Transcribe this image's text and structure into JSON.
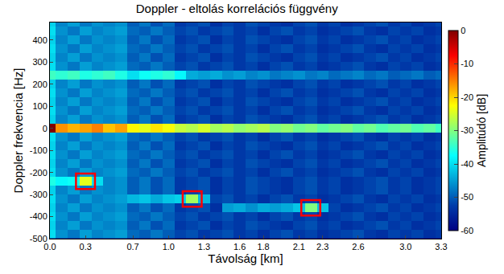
{
  "chart_data": {
    "type": "heatmap",
    "title": "Doppler - eltolás korrelációs függvény",
    "x_label": "Távolság [km]",
    "y_label": "Doppler frekvencia [Hz]",
    "color": "Jet",
    "x": [
      0.0,
      0.1,
      0.2,
      0.3,
      0.4,
      0.5,
      0.6,
      0.7,
      0.8,
      0.9,
      1.0,
      1.1,
      1.2,
      1.3,
      1.4,
      1.5,
      1.6,
      1.7,
      1.8,
      1.9,
      2.0,
      2.1,
      2.2,
      2.3,
      2.4,
      2.5,
      2.6,
      2.7,
      2.8,
      2.9,
      3.0,
      3.1,
      3.2,
      3.3
    ],
    "y": [
      -480,
      -440,
      -400,
      -360,
      -320,
      -280,
      -240,
      -200,
      -160,
      -120,
      -80,
      -40,
      0,
      40,
      80,
      120,
      160,
      200,
      240,
      280,
      320,
      360,
      400,
      440,
      480
    ],
    "z": [
      [
        -40,
        -46,
        -48,
        -45,
        -47,
        -46,
        -45,
        -49,
        -50,
        -48,
        -50,
        -52,
        -51,
        -53,
        -52,
        -51,
        -53,
        -52,
        -54,
        -52,
        -51,
        -53,
        -52,
        -54,
        -53,
        -52,
        -51,
        -53,
        -54,
        -52,
        -53,
        -52,
        -54,
        -53
      ],
      [
        -41,
        -47,
        -45,
        -48,
        -46,
        -47,
        -46,
        -50,
        -48,
        -51,
        -49,
        -53,
        -52,
        -51,
        -54,
        -52,
        -53,
        -51,
        -52,
        -53,
        -54,
        -52,
        -51,
        -53,
        -52,
        -54,
        -53,
        -52,
        -51,
        -53,
        -52,
        -54,
        -53,
        -52
      ],
      [
        -40,
        -46,
        -48,
        -45,
        -47,
        -46,
        -45,
        -49,
        -50,
        -48,
        -50,
        -52,
        -51,
        -53,
        -52,
        -51,
        -53,
        -52,
        -54,
        -52,
        -51,
        -53,
        -52,
        -54,
        -53,
        -52,
        -51,
        -53,
        -54,
        -52,
        -53,
        -52,
        -54,
        -53
      ],
      [
        -41,
        -47,
        -45,
        -48,
        -46,
        -47,
        -46,
        -50,
        -48,
        -51,
        -49,
        -53,
        -52,
        -51,
        -54,
        -45,
        -44,
        -46,
        -44,
        -45,
        -44,
        -42,
        -30,
        -42,
        -52,
        -54,
        -53,
        -52,
        -51,
        -53,
        -52,
        -54,
        -53,
        -52
      ],
      [
        -40,
        -46,
        -48,
        -45,
        -47,
        -46,
        -45,
        -43,
        -42,
        -44,
        -42,
        -41,
        -28,
        -43,
        -52,
        -51,
        -53,
        -52,
        -54,
        -52,
        -51,
        -53,
        -52,
        -54,
        -53,
        -52,
        -51,
        -53,
        -54,
        -52,
        -53,
        -52,
        -54,
        -53
      ],
      [
        -41,
        -47,
        -45,
        -48,
        -46,
        -47,
        -46,
        -50,
        -48,
        -51,
        -49,
        -53,
        -52,
        -51,
        -54,
        -52,
        -53,
        -51,
        -52,
        -53,
        -54,
        -52,
        -51,
        -53,
        -52,
        -54,
        -53,
        -52,
        -51,
        -53,
        -52,
        -54,
        -53,
        -52
      ],
      [
        -36,
        -38,
        -37,
        -24,
        -40,
        -47,
        -46,
        -50,
        -48,
        -51,
        -49,
        -53,
        -52,
        -51,
        -54,
        -52,
        -53,
        -51,
        -52,
        -53,
        -54,
        -52,
        -51,
        -53,
        -52,
        -54,
        -53,
        -52,
        -51,
        -53,
        -52,
        -54,
        -53,
        -52
      ],
      [
        -40,
        -46,
        -48,
        -45,
        -47,
        -46,
        -45,
        -49,
        -50,
        -48,
        -50,
        -52,
        -51,
        -53,
        -52,
        -51,
        -53,
        -52,
        -54,
        -52,
        -51,
        -53,
        -52,
        -54,
        -53,
        -52,
        -51,
        -53,
        -54,
        -52,
        -53,
        -52,
        -54,
        -53
      ],
      [
        -41,
        -47,
        -45,
        -48,
        -46,
        -47,
        -46,
        -50,
        -48,
        -51,
        -49,
        -53,
        -52,
        -51,
        -54,
        -52,
        -53,
        -51,
        -52,
        -53,
        -54,
        -52,
        -51,
        -53,
        -52,
        -54,
        -53,
        -52,
        -51,
        -53,
        -52,
        -54,
        -53,
        -52
      ],
      [
        -40,
        -46,
        -48,
        -45,
        -47,
        -46,
        -45,
        -49,
        -50,
        -48,
        -50,
        -52,
        -51,
        -53,
        -52,
        -51,
        -53,
        -52,
        -54,
        -52,
        -51,
        -53,
        -52,
        -54,
        -53,
        -52,
        -51,
        -53,
        -54,
        -52,
        -53,
        -52,
        -54,
        -53
      ],
      [
        -41,
        -47,
        -45,
        -48,
        -46,
        -47,
        -46,
        -50,
        -48,
        -51,
        -49,
        -53,
        -52,
        -51,
        -54,
        -52,
        -53,
        -51,
        -52,
        -53,
        -54,
        -52,
        -51,
        -53,
        -52,
        -54,
        -53,
        -52,
        -51,
        -53,
        -52,
        -54,
        -53,
        -52
      ],
      [
        -40,
        -46,
        -48,
        -45,
        -47,
        -46,
        -45,
        -49,
        -50,
        -48,
        -50,
        -52,
        -51,
        -53,
        -52,
        -51,
        -53,
        -52,
        -54,
        -52,
        -51,
        -53,
        -52,
        -54,
        -53,
        -52,
        -51,
        -53,
        -54,
        -52,
        -53,
        -52,
        -54,
        -53
      ],
      [
        0,
        -16,
        -18,
        -17,
        -15,
        -19,
        -17,
        -22,
        -24,
        -21,
        -23,
        -26,
        -27,
        -25,
        -28,
        -27,
        -29,
        -28,
        -27,
        -30,
        -29,
        -31,
        -30,
        -32,
        -31,
        -30,
        -32,
        -31,
        -33,
        -32,
        -31,
        -33,
        -32,
        -34
      ],
      [
        -41,
        -47,
        -45,
        -48,
        -46,
        -47,
        -46,
        -50,
        -48,
        -51,
        -49,
        -53,
        -52,
        -51,
        -54,
        -52,
        -53,
        -51,
        -52,
        -53,
        -54,
        -52,
        -51,
        -53,
        -52,
        -54,
        -53,
        -52,
        -51,
        -53,
        -52,
        -54,
        -53,
        -52
      ],
      [
        -40,
        -46,
        -48,
        -45,
        -47,
        -46,
        -45,
        -49,
        -50,
        -48,
        -50,
        -52,
        -51,
        -53,
        -52,
        -51,
        -53,
        -52,
        -54,
        -52,
        -51,
        -53,
        -52,
        -54,
        -53,
        -52,
        -51,
        -53,
        -54,
        -52,
        -53,
        -52,
        -54,
        -53
      ],
      [
        -41,
        -47,
        -45,
        -48,
        -46,
        -47,
        -46,
        -50,
        -48,
        -51,
        -49,
        -53,
        -52,
        -51,
        -54,
        -52,
        -53,
        -51,
        -52,
        -53,
        -54,
        -52,
        -51,
        -53,
        -52,
        -54,
        -53,
        -52,
        -51,
        -53,
        -52,
        -54,
        -53,
        -52
      ],
      [
        -40,
        -46,
        -48,
        -45,
        -47,
        -46,
        -45,
        -49,
        -50,
        -48,
        -50,
        -52,
        -51,
        -53,
        -52,
        -51,
        -53,
        -52,
        -54,
        -52,
        -51,
        -53,
        -52,
        -54,
        -53,
        -52,
        -51,
        -53,
        -54,
        -52,
        -53,
        -52,
        -54,
        -53
      ],
      [
        -41,
        -47,
        -45,
        -48,
        -46,
        -47,
        -46,
        -50,
        -48,
        -51,
        -49,
        -53,
        -52,
        -51,
        -54,
        -52,
        -53,
        -51,
        -52,
        -53,
        -54,
        -52,
        -51,
        -53,
        -52,
        -54,
        -53,
        -52,
        -51,
        -53,
        -52,
        -54,
        -53,
        -52
      ],
      [
        -34,
        -35,
        -34,
        -36,
        -35,
        -34,
        -36,
        -40,
        -37,
        -36,
        -35,
        -38,
        -44,
        -45,
        -44,
        -46,
        -45,
        -47,
        -46,
        -48,
        -47,
        -46,
        -48,
        -47,
        -49,
        -48,
        -47,
        -49,
        -48,
        -50,
        -49,
        -48,
        -50,
        -49
      ],
      [
        -40,
        -46,
        -48,
        -45,
        -47,
        -46,
        -45,
        -49,
        -50,
        -48,
        -50,
        -52,
        -51,
        -53,
        -52,
        -51,
        -53,
        -52,
        -54,
        -52,
        -51,
        -53,
        -52,
        -54,
        -53,
        -52,
        -51,
        -53,
        -54,
        -52,
        -53,
        -52,
        -54,
        -53
      ],
      [
        -41,
        -47,
        -45,
        -48,
        -46,
        -47,
        -46,
        -50,
        -48,
        -51,
        -49,
        -53,
        -52,
        -51,
        -54,
        -52,
        -53,
        -51,
        -52,
        -53,
        -54,
        -52,
        -51,
        -53,
        -52,
        -54,
        -53,
        -52,
        -51,
        -53,
        -52,
        -54,
        -53,
        -52
      ],
      [
        -40,
        -46,
        -48,
        -45,
        -47,
        -46,
        -45,
        -49,
        -50,
        -48,
        -50,
        -52,
        -51,
        -53,
        -52,
        -51,
        -53,
        -52,
        -54,
        -52,
        -51,
        -53,
        -52,
        -54,
        -53,
        -52,
        -51,
        -53,
        -54,
        -52,
        -53,
        -52,
        -54,
        -53
      ],
      [
        -41,
        -47,
        -45,
        -48,
        -46,
        -47,
        -46,
        -50,
        -48,
        -51,
        -49,
        -53,
        -52,
        -51,
        -54,
        -52,
        -53,
        -51,
        -52,
        -53,
        -54,
        -52,
        -51,
        -53,
        -52,
        -54,
        -53,
        -52,
        -51,
        -53,
        -52,
        -54,
        -53,
        -52
      ],
      [
        -40,
        -46,
        -48,
        -45,
        -47,
        -46,
        -45,
        -49,
        -50,
        -48,
        -50,
        -52,
        -51,
        -53,
        -52,
        -51,
        -53,
        -52,
        -54,
        -52,
        -51,
        -53,
        -52,
        -54,
        -53,
        -52,
        -51,
        -53,
        -54,
        -52,
        -53,
        -52,
        -54,
        -53
      ],
      [
        -41,
        -47,
        -45,
        -48,
        -46,
        -47,
        -46,
        -50,
        -48,
        -51,
        -49,
        -53,
        -52,
        -51,
        -54,
        -52,
        -53,
        -51,
        -52,
        -53,
        -54,
        -52,
        -51,
        -53,
        -52,
        -54,
        -53,
        -52,
        -51,
        -53,
        -52,
        -54,
        -53,
        -52
      ]
    ],
    "xlim": [
      0,
      3.3
    ],
    "ylim": [
      -500,
      480
    ],
    "xticks": [
      {
        "value": 0,
        "label": "0.0"
      },
      0.3,
      0.7,
      {
        "value": 1,
        "label": "1.0"
      },
      1.3,
      1.6,
      1.8,
      2.1,
      2.3,
      2.6,
      {
        "value": 3,
        "label": "3.0"
      },
      3.3
    ],
    "yticks": [
      -500,
      -400,
      -300,
      -200,
      -100,
      0,
      100,
      200,
      300,
      400
    ],
    "colorbar": {
      "title": "Amplitúdó [dB]",
      "range": [
        -60,
        0
      ],
      "ticks": [
        0,
        -10,
        -20,
        -30,
        -40,
        -50,
        -60
      ]
    },
    "targets": {
      "color": "#ff0000",
      "points": [
        {
          "x": 0.3,
          "y": -240
        },
        {
          "x": 1.2,
          "y": -320
        },
        {
          "x": 2.2,
          "y": -360
        }
      ]
    }
  }
}
